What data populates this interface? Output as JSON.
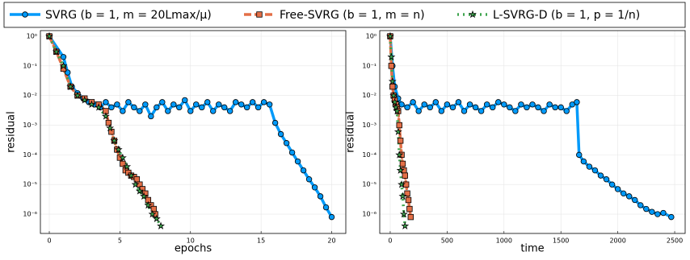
{
  "chart_data": [
    {
      "type": "line",
      "xlabel": "epochs",
      "ylabel": "residual",
      "yscale": "log",
      "grid": true,
      "xlim": [
        -0.63,
        21.0
      ],
      "xticks": [
        0,
        5,
        10,
        15,
        20
      ],
      "ylim": [
        2.24e-07,
        1.55
      ],
      "yticks": [
        {
          "value": 1,
          "label": "10⁰"
        },
        {
          "value": 0.1,
          "label": "10⁻¹"
        },
        {
          "value": 0.01,
          "label": "10⁻²"
        },
        {
          "value": 0.001,
          "label": "10⁻³"
        },
        {
          "value": 0.0001,
          "label": "10⁻⁴"
        },
        {
          "value": 1e-05,
          "label": "10⁻⁵"
        },
        {
          "value": 1e-06,
          "label": "10⁻⁶"
        }
      ],
      "series": [
        {
          "name": "SVRG (b = 1, m = 20Lmax/μ)",
          "color": "#009afa",
          "marker": "circle",
          "dash": "solid",
          "x": [
            0,
            1,
            1.3,
            1.6,
            2,
            2.4,
            2.8,
            3.2,
            3.6,
            4,
            4.4,
            4.8,
            5.2,
            5.6,
            6,
            6.4,
            6.8,
            7.2,
            7.6,
            8,
            8.4,
            8.8,
            9.2,
            9.6,
            10,
            10.4,
            10.8,
            11.2,
            11.6,
            12,
            12.4,
            12.8,
            13.2,
            13.6,
            14,
            14.4,
            14.8,
            15.2,
            15.6,
            16,
            16.4,
            16.8,
            17.2,
            17.6,
            18,
            18.4,
            18.8,
            19.2,
            19.6,
            20
          ],
          "values": [
            1,
            0.2,
            0.06,
            0.02,
            0.012,
            0.008,
            0.006,
            0.005,
            0.004,
            0.006,
            0.004,
            0.005,
            0.003,
            0.006,
            0.004,
            0.003,
            0.005,
            0.002,
            0.004,
            0.006,
            0.003,
            0.005,
            0.004,
            0.007,
            0.003,
            0.005,
            0.004,
            0.006,
            0.003,
            0.005,
            0.004,
            0.003,
            0.006,
            0.005,
            0.004,
            0.006,
            0.004,
            0.006,
            0.005,
            0.0012,
            0.0005,
            0.00025,
            0.00012,
            6e-05,
            3e-05,
            1.5e-05,
            8e-06,
            4e-06,
            1.7e-06,
            8e-07
          ]
        },
        {
          "name": "Free-SVRG (b = 1, m = n)",
          "color": "#e36f47",
          "marker": "square",
          "dash": "dashed",
          "x": [
            0,
            0.5,
            1,
            1.5,
            2,
            2.5,
            3,
            3.5,
            4,
            4.2,
            4.4,
            4.6,
            4.8,
            5,
            5.2,
            5.4,
            5.6,
            5.8,
            6,
            6.2,
            6.4,
            6.6,
            6.8,
            7,
            7.2,
            7.4,
            7.5
          ],
          "values": [
            1,
            0.3,
            0.08,
            0.02,
            0.01,
            0.008,
            0.006,
            0.005,
            0.003,
            0.0012,
            0.0006,
            0.0003,
            0.00015,
            8e-05,
            5e-05,
            3e-05,
            2.5e-05,
            2e-05,
            1.8e-05,
            1.5e-05,
            1e-05,
            7e-06,
            5e-06,
            3e-06,
            2e-06,
            1.5e-06,
            1e-06
          ]
        },
        {
          "name": "L-SVRG-D (b = 1, p = 1/n)",
          "color": "#3ea44e",
          "marker": "star",
          "dash": "dotted",
          "x": [
            0,
            0.5,
            1,
            1.5,
            2,
            2.5,
            3,
            3.5,
            4,
            4.3,
            4.6,
            4.9,
            5.2,
            5.5,
            5.8,
            6.1,
            6.4,
            6.7,
            7,
            7.3,
            7.6,
            7.9
          ],
          "values": [
            1,
            0.3,
            0.1,
            0.02,
            0.01,
            0.007,
            0.005,
            0.004,
            0.002,
            0.0008,
            0.0003,
            0.00015,
            8e-05,
            4e-05,
            2e-05,
            1e-05,
            6e-06,
            4e-06,
            2e-06,
            1e-06,
            7e-07,
            4e-07
          ]
        }
      ]
    },
    {
      "type": "line",
      "xlabel": "time",
      "ylabel": "residual",
      "yscale": "log",
      "grid": true,
      "xlim": [
        -92,
        2592
      ],
      "xticks": [
        0,
        500,
        1000,
        1500,
        2000,
        2500
      ],
      "ylim": [
        2.24e-07,
        1.55
      ],
      "yticks": [
        {
          "value": 1,
          "label": "10⁰"
        },
        {
          "value": 0.1,
          "label": "10⁻¹"
        },
        {
          "value": 0.01,
          "label": "10⁻²"
        },
        {
          "value": 0.001,
          "label": "10⁻³"
        },
        {
          "value": 0.0001,
          "label": "10⁻⁴"
        },
        {
          "value": 1e-05,
          "label": "10⁻⁵"
        },
        {
          "value": 1e-06,
          "label": "10⁻⁶"
        }
      ],
      "series": [
        {
          "color": "#009afa",
          "marker": "circle",
          "dash": "solid",
          "x": [
            0,
            20,
            40,
            70,
            100,
            150,
            200,
            250,
            300,
            350,
            400,
            450,
            500,
            550,
            600,
            650,
            700,
            750,
            800,
            850,
            900,
            950,
            1000,
            1050,
            1100,
            1150,
            1200,
            1250,
            1300,
            1350,
            1400,
            1450,
            1500,
            1550,
            1600,
            1640,
            1660,
            1700,
            1750,
            1800,
            1850,
            1900,
            1950,
            2000,
            2050,
            2100,
            2150,
            2200,
            2250,
            2300,
            2350,
            2400,
            2470
          ],
          "values": [
            1,
            0.1,
            0.02,
            0.008,
            0.005,
            0.004,
            0.006,
            0.003,
            0.005,
            0.004,
            0.006,
            0.003,
            0.005,
            0.004,
            0.006,
            0.003,
            0.005,
            0.004,
            0.003,
            0.005,
            0.004,
            0.006,
            0.005,
            0.004,
            0.003,
            0.005,
            0.004,
            0.005,
            0.004,
            0.003,
            0.005,
            0.004,
            0.004,
            0.003,
            0.005,
            0.006,
            0.0001,
            6e-05,
            4e-05,
            3e-05,
            2e-05,
            1.5e-05,
            1e-05,
            7e-06,
            5e-06,
            4e-06,
            3e-06,
            2e-06,
            1.5e-06,
            1.2e-06,
            1e-06,
            1.1e-06,
            8e-07
          ]
        },
        {
          "color": "#e36f47",
          "marker": "square",
          "dash": "dashed",
          "x": [
            0,
            10,
            20,
            30,
            40,
            50,
            60,
            70,
            80,
            90,
            100,
            110,
            120,
            130,
            140,
            150,
            160,
            170,
            180
          ],
          "values": [
            1,
            0.1,
            0.02,
            0.01,
            0.007,
            0.005,
            0.004,
            0.003,
            0.001,
            0.0003,
            0.0001,
            5e-05,
            3e-05,
            2e-05,
            1e-05,
            5e-06,
            3e-06,
            1.5e-06,
            8e-07
          ]
        },
        {
          "color": "#3ea44e",
          "marker": "star",
          "dash": "dotted",
          "x": [
            0,
            10,
            20,
            30,
            40,
            50,
            60,
            70,
            80,
            90,
            100,
            110,
            120,
            130
          ],
          "values": [
            1,
            0.2,
            0.03,
            0.01,
            0.006,
            0.004,
            0.003,
            0.0006,
            0.0001,
            3e-05,
            1e-05,
            4e-06,
            1e-06,
            4e-07
          ]
        }
      ]
    }
  ]
}
